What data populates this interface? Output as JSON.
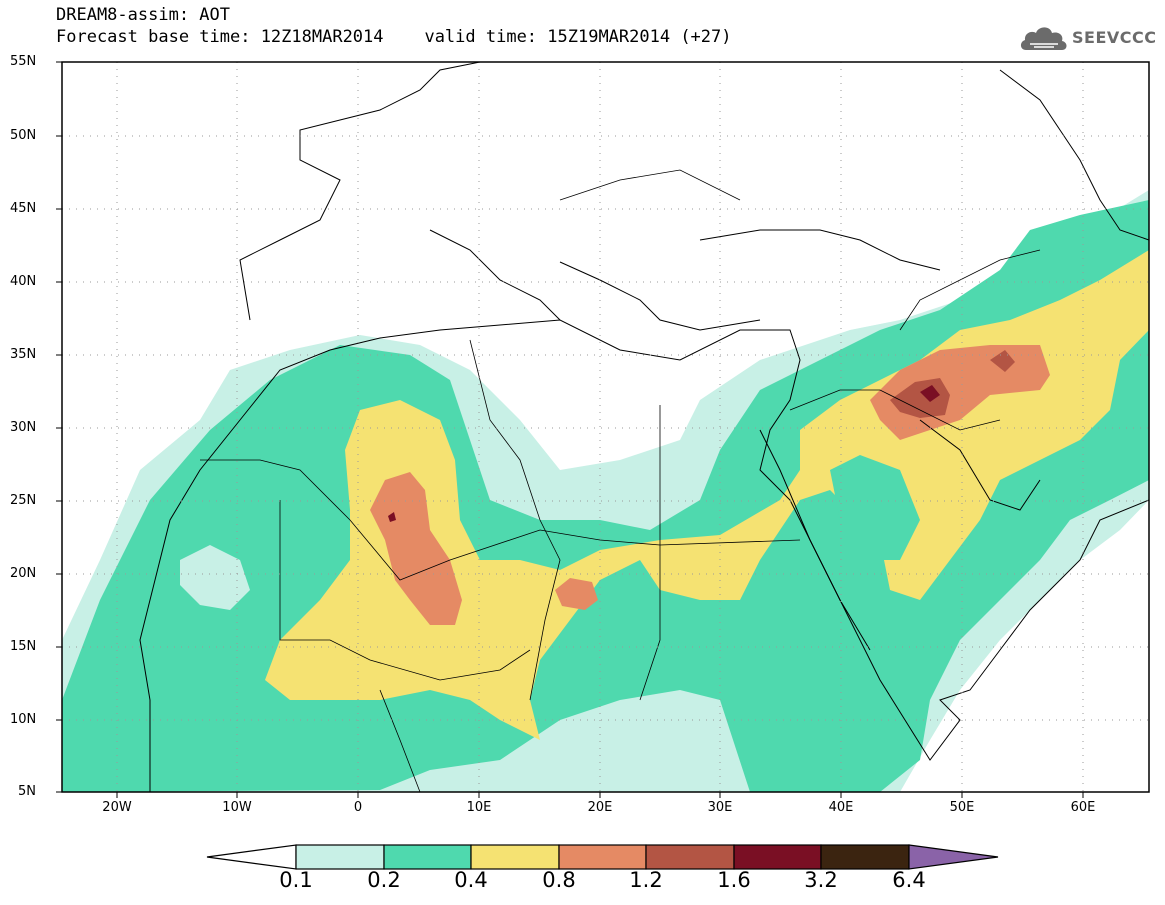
{
  "header": {
    "title_line1": "DREAM8-assim: AOT",
    "title_line2": "Forecast base time: 12Z18MAR2014    valid time: 15Z19MAR2014 (+27)"
  },
  "logo": {
    "text": "SEEVCCC",
    "icon": "cloud-logo-icon"
  },
  "map": {
    "lat_labels": [
      "55N",
      "50N",
      "45N",
      "40N",
      "35N",
      "30N",
      "25N",
      "20N",
      "15N",
      "10N",
      "5N"
    ],
    "lon_labels": [
      "20W",
      "10W",
      "0",
      "10E",
      "20E",
      "30E",
      "40E",
      "50E",
      "60E"
    ],
    "extent": {
      "lon_min": -25,
      "lon_max": 65,
      "lat_min": 5,
      "lat_max": 55
    }
  },
  "legend": {
    "boundaries": [
      "0.1",
      "0.2",
      "0.4",
      "0.8",
      "1.2",
      "1.6",
      "3.2",
      "6.4"
    ],
    "colors": {
      "under": "#ffffff",
      "c1": "#c8f0e6",
      "c2": "#4fd9ae",
      "c3": "#f5e272",
      "c4": "#e58a64",
      "c5": "#b35544",
      "c6": "#7a0f24",
      "c7": "#3b2410",
      "over": "#8a63a8"
    }
  }
}
